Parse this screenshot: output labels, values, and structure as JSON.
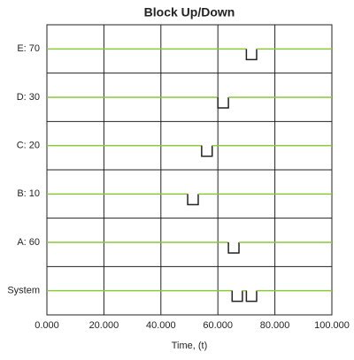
{
  "chart_data": {
    "type": "block-timeline",
    "title": "Block Up/Down",
    "xlabel": "Time, (t)",
    "xlim": [
      0,
      100000
    ],
    "xticks": [
      {
        "value": 0,
        "label": "0.000"
      },
      {
        "value": 20000,
        "label": "20.000"
      },
      {
        "value": 40000,
        "label": "40.000"
      },
      {
        "value": 60000,
        "label": "60.000"
      },
      {
        "value": 80000,
        "label": "80.000"
      },
      {
        "value": 100000,
        "label": "100.000"
      }
    ],
    "grid": true,
    "up_color": "#8cc63f",
    "down_color": "#222222",
    "series": [
      {
        "name": "E: 70",
        "down": [
          [
            70000,
            73600
          ]
        ]
      },
      {
        "name": "D: 30",
        "down": [
          [
            60000,
            63700
          ]
        ]
      },
      {
        "name": "C: 20",
        "down": [
          [
            54300,
            58000
          ]
        ]
      },
      {
        "name": "B: 10",
        "down": [
          [
            49400,
            53100
          ]
        ]
      },
      {
        "name": "A: 60",
        "down": [
          [
            63700,
            67400
          ]
        ]
      },
      {
        "name": "System",
        "down": [
          [
            65000,
            68600
          ],
          [
            70000,
            73600
          ]
        ]
      }
    ]
  }
}
